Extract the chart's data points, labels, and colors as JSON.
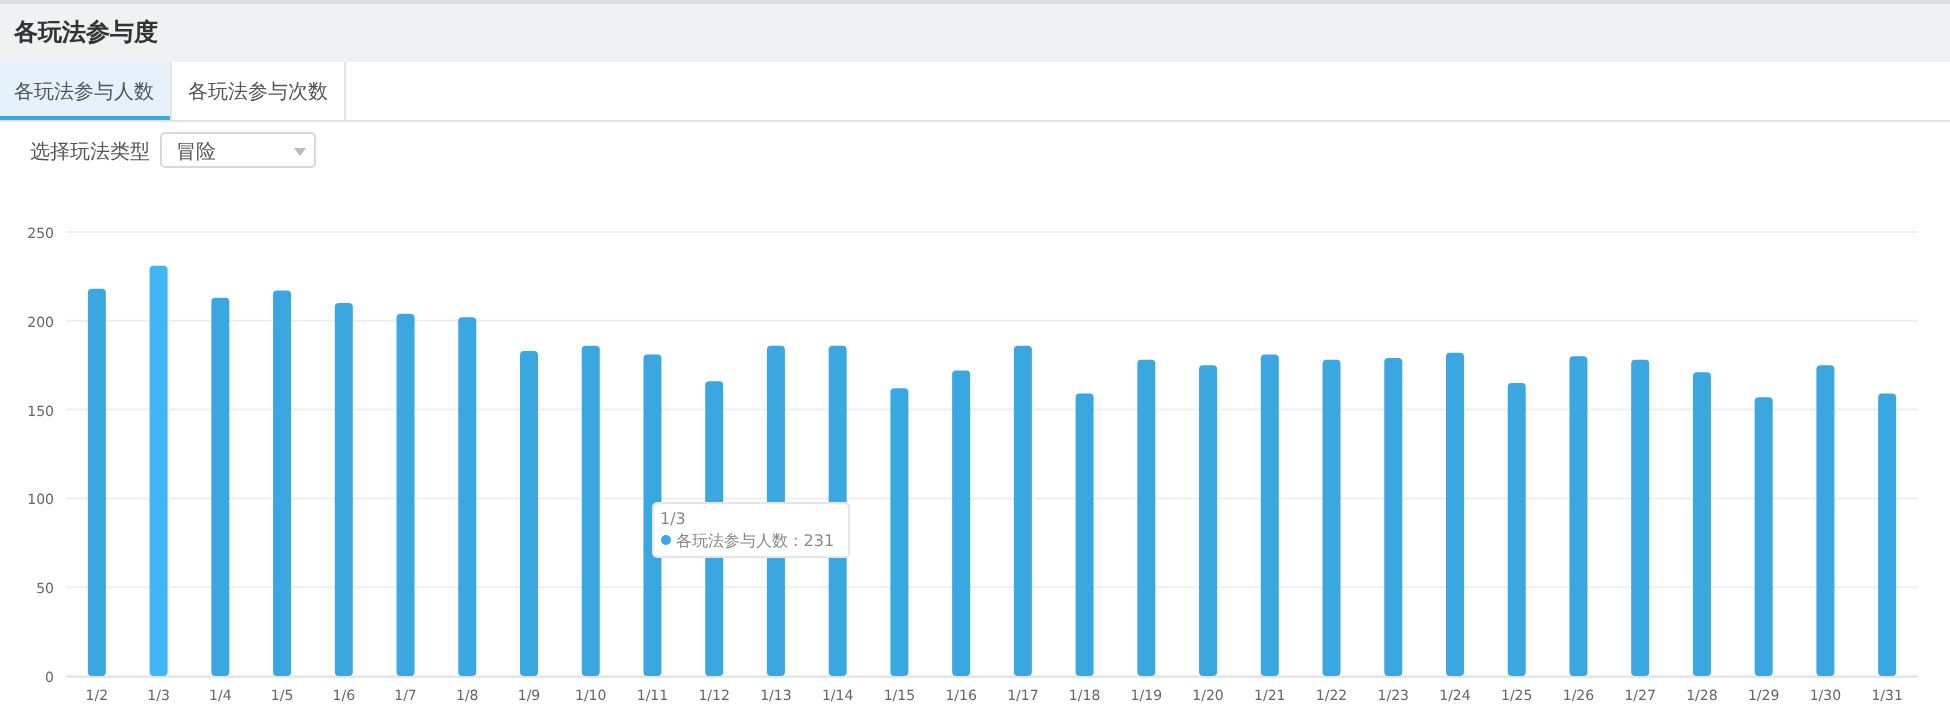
{
  "chart_data": {
    "type": "bar",
    "title": "各玩法参与度",
    "annotations": [
      "各玩法参与人数",
      "各玩法参与次数",
      "选择玩法类型",
      "冒险",
      "1/3",
      "各玩法参与人数 : 231"
    ],
    "categories": [
      "1/2",
      "1/3",
      "1/4",
      "1/5",
      "1/6",
      "1/7",
      "1/8",
      "1/9",
      "1/10",
      "1/11",
      "1/12",
      "1/13",
      "1/14",
      "1/15",
      "1/16",
      "1/17",
      "1/18",
      "1/19",
      "1/20",
      "1/21",
      "1/22",
      "1/23",
      "1/24",
      "1/25",
      "1/26",
      "1/27",
      "1/28",
      "1/29",
      "1/30",
      "1/31"
    ],
    "values": [
      218,
      231,
      213,
      217,
      210,
      204,
      202,
      183,
      186,
      181,
      166,
      186,
      186,
      162,
      172,
      186,
      159,
      178,
      175,
      181,
      178,
      179,
      182,
      165,
      180,
      178,
      171,
      157,
      175,
      159
    ],
    "colors": [
      "#3aa7e1",
      "#42b6f5",
      "#3aa7e1",
      "#3aa7e1",
      "#3aa7e1",
      "#3aa7e1",
      "#3aa7e1",
      "#3aa7e1",
      "#3aa7e1",
      "#3aa7e1",
      "#3aa7e1",
      "#3aa7e1",
      "#3aa7e1",
      "#3aa7e1",
      "#3aa7e1",
      "#3aa7e1",
      "#3aa7e1",
      "#3aa7e1",
      "#3aa7e1",
      "#3aa7e1",
      "#3aa7e1",
      "#3aa7e1",
      "#3aa7e1",
      "#3aa7e1",
      "#3aa7e1",
      "#3aa7e1",
      "#3aa7e1",
      "#3aa7e1",
      "#3aa7e1",
      "#3aa7e1"
    ],
    "ylim": [
      0,
      250
    ],
    "yticks": [
      0,
      50,
      100,
      150,
      200,
      250
    ],
    "grid": "y"
  }
}
